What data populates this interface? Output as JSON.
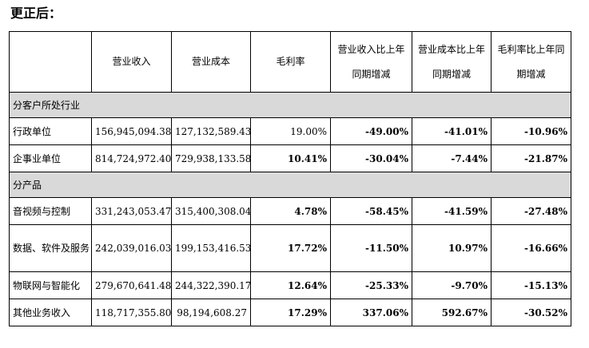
{
  "heading": "更正后：",
  "header": {
    "blank": "",
    "revenue": "营业收入",
    "cost": "营业成本",
    "margin": "毛利率",
    "revenue_yoy_l1": "营业收入比上年",
    "revenue_yoy_l2": "同期增减",
    "cost_yoy_l1": "营业成本比上年",
    "cost_yoy_l2": "同期增减",
    "margin_yoy_l1": "毛利率比上年同",
    "margin_yoy_l2": "期增减"
  },
  "sections": [
    {
      "title": "分客户所处行业",
      "rows": [
        {
          "name": "行政单位",
          "revenue": "156,945,094.38",
          "cost": "127,132,589.43",
          "margin": "19.00%",
          "revenue_yoy": "-49.00%",
          "cost_yoy": "-41.01%",
          "margin_yoy": "-10.96%"
        },
        {
          "name": "企事业单位",
          "revenue": "814,724,972.40",
          "cost": "729,938,133.58",
          "margin": "10.41%",
          "revenue_yoy": "-30.04%",
          "cost_yoy": "-7.44%",
          "margin_yoy": "-21.87%"
        }
      ]
    },
    {
      "title": "分产品",
      "rows": [
        {
          "name": "音视频与控制",
          "revenue": "331,243,053.47",
          "cost": "315,400,308.04",
          "margin": "4.78%",
          "revenue_yoy": "-58.45%",
          "cost_yoy": "-41.59%",
          "margin_yoy": "-27.48%"
        },
        {
          "name": "数据、软件及服务",
          "revenue": "242,039,016.03",
          "cost": "199,153,416.53",
          "margin": "17.72%",
          "revenue_yoy": "-11.50%",
          "cost_yoy": "10.97%",
          "margin_yoy": "-16.66%"
        },
        {
          "name": "物联网与智能化",
          "revenue": "279,670,641.48",
          "cost": "244,322,390.17",
          "margin": "12.64%",
          "revenue_yoy": "-25.33%",
          "cost_yoy": "-9.70%",
          "margin_yoy": "-15.13%"
        },
        {
          "name": "其他业务收入",
          "revenue": "118,717,355.80",
          "cost": "98,194,608.27",
          "margin": "17.29%",
          "revenue_yoy": "337.06%",
          "cost_yoy": "592.67%",
          "margin_yoy": "-30.52%"
        }
      ]
    }
  ]
}
